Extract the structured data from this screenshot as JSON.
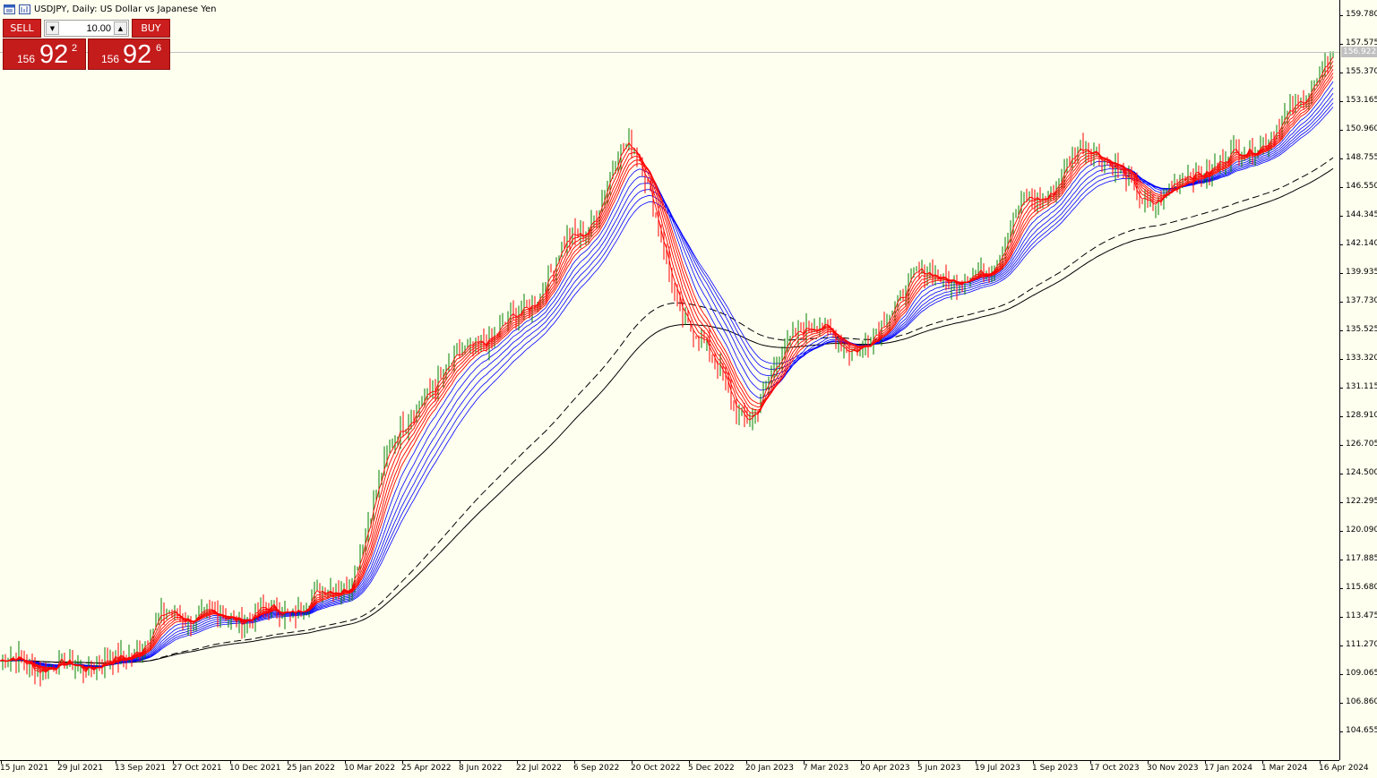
{
  "window": {
    "title": "USDJPY, Daily:  US Dollar vs Japanese Yen",
    "icons": [
      "chart-window-icon",
      "chart-type-icon"
    ]
  },
  "trade_panel": {
    "sell_label": "SELL",
    "buy_label": "BUY",
    "lot_value": "10.00",
    "sell_price": {
      "prefix": "156",
      "big": "92",
      "sup": "2"
    },
    "buy_price": {
      "prefix": "156",
      "big": "92",
      "sup": "6"
    },
    "colors": {
      "button": "#cc1e1e",
      "price_bg": "#c41b1b"
    }
  },
  "current_price_label": "156.922",
  "chart_data": {
    "type": "candlestick",
    "symbol": "USDJPY",
    "timeframe": "Daily",
    "y_ticks": [
      "159.780",
      "157.575",
      "155.370",
      "153.165",
      "150.960",
      "148.755",
      "146.550",
      "144.345",
      "142.140",
      "139.935",
      "137.730",
      "135.525",
      "133.320",
      "131.115",
      "128.910",
      "126.705",
      "124.500",
      "122.295",
      "120.090",
      "117.885",
      "115.680",
      "113.475",
      "111.270",
      "109.065",
      "106.860",
      "104.655"
    ],
    "x_ticks": [
      "15 Jun 2021",
      "29 Jul 2021",
      "13 Sep 2021",
      "27 Oct 2021",
      "10 Dec 2021",
      "25 Jan 2022",
      "10 Mar 2022",
      "25 Apr 2022",
      "8 Jun 2022",
      "22 Jul 2022",
      "6 Sep 2022",
      "20 Oct 2022",
      "5 Dec 2022",
      "20 Jan 2023",
      "7 Mar 2023",
      "20 Apr 2023",
      "5 Jun 2023",
      "19 Jul 2023",
      "1 Sep 2023",
      "17 Oct 2023",
      "30 Nov 2023",
      "17 Jan 2024",
      "1 Mar 2024",
      "16 Apr 2024"
    ],
    "ylim": [
      103.6,
      160.9
    ],
    "current_price": 156.922,
    "price_path": [
      [
        "15 Jun 2021",
        110.1
      ],
      [
        "29 Jul 2021",
        109.6
      ],
      [
        "13 Sep 2021",
        110.0
      ],
      [
        "27 Oct 2021",
        113.6
      ],
      [
        "10 Dec 2021",
        113.4
      ],
      [
        "25 Jan 2022",
        114.0
      ],
      [
        "10 Mar 2022",
        116.0
      ],
      [
        "25 Apr 2022",
        128.3
      ],
      [
        "8 Jun 2022",
        133.5
      ],
      [
        "22 Jul 2022",
        136.5
      ],
      [
        "6 Sep 2022",
        142.5
      ],
      [
        "20 Oct 2022",
        149.7
      ],
      [
        "5 Dec 2022",
        136.0
      ],
      [
        "20 Jan 2023",
        129.0
      ],
      [
        "7 Mar 2023",
        135.9
      ],
      [
        "20 Apr 2023",
        134.2
      ],
      [
        "5 Jun 2023",
        139.7
      ],
      [
        "19 Jul 2023",
        139.5
      ],
      [
        "1 Sep 2023",
        145.5
      ],
      [
        "17 Oct 2023",
        149.6
      ],
      [
        "30 Nov 2023",
        145.5
      ],
      [
        "17 Jan 2024",
        148.0
      ],
      [
        "1 Mar 2024",
        150.0
      ],
      [
        "16 Apr 2024",
        154.7
      ],
      [
        "26 Apr 2024",
        156.9
      ]
    ],
    "indicators": {
      "short_emas": {
        "count": 6,
        "color": "#ff0000"
      },
      "long_emas": {
        "count": 6,
        "color": "#0000ff"
      },
      "very_long_mas": {
        "count": 2,
        "color": "#000000"
      }
    },
    "colors": {
      "background": "#fffff0",
      "candle_up": "#008000",
      "candle_down": "#ff0000"
    }
  }
}
